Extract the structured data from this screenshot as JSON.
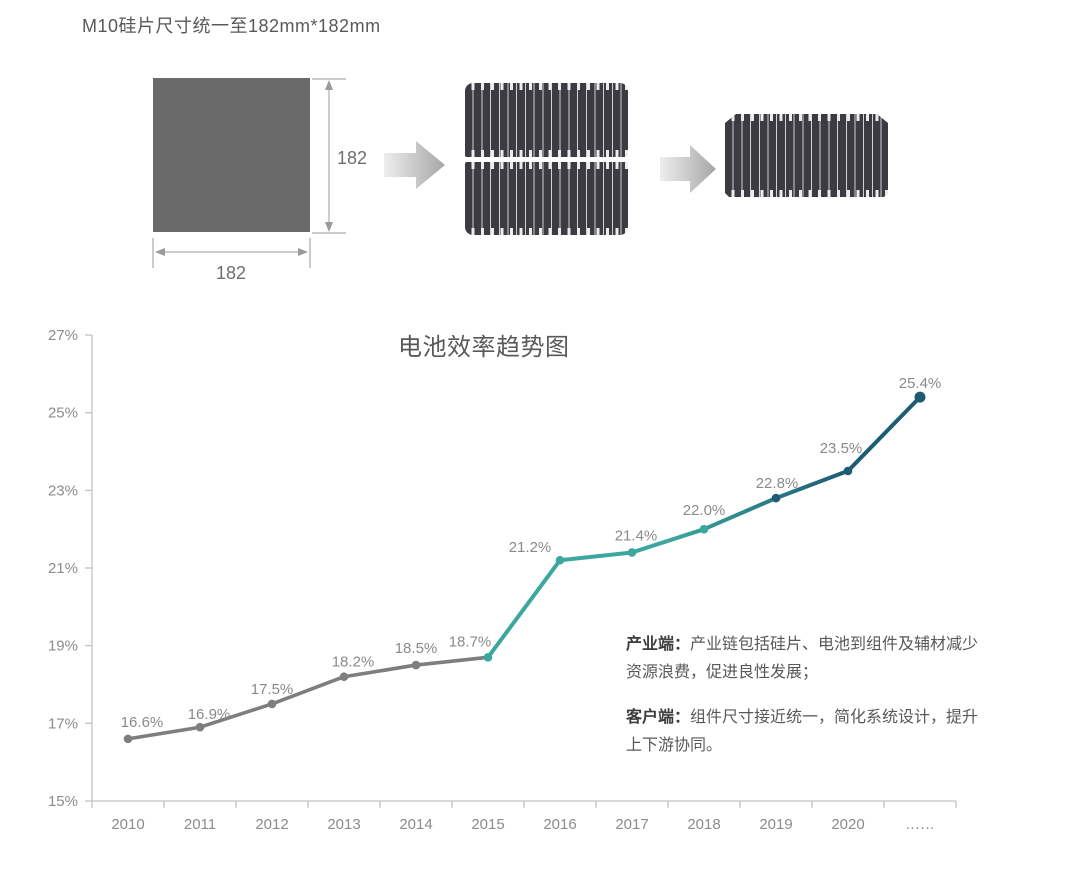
{
  "header": {
    "title": "M10硅片尺寸统一至182mm*182mm"
  },
  "diagram": {
    "wafer_height_label": "182",
    "wafer_width_label": "182"
  },
  "chart_data": {
    "type": "line",
    "title": "电池效率趋势图",
    "categories": [
      "2010",
      "2011",
      "2012",
      "2013",
      "2014",
      "2015",
      "2016",
      "2017",
      "2018",
      "2019",
      "2020",
      "……"
    ],
    "values": [
      16.6,
      16.9,
      17.5,
      18.2,
      18.5,
      18.7,
      21.2,
      21.4,
      22.0,
      22.8,
      23.5,
      25.4
    ],
    "point_labels": [
      "16.6%",
      "16.9%",
      "17.5%",
      "18.2%",
      "18.5%",
      "18.7%",
      "21.2%",
      "21.4%",
      "22.0%",
      "22.8%",
      "23.5%",
      "25.4%"
    ],
    "xlabel": "",
    "ylabel": "",
    "ylim": [
      15,
      27
    ],
    "ytick_step": 2,
    "ytick_labels": [
      "15%",
      "17%",
      "19%",
      "21%",
      "23%",
      "25%",
      "27%"
    ],
    "grid": false,
    "legend": "none",
    "series_colors": {
      "early": "#7e7e7e",
      "mid": "#3ca79e",
      "late": "#1e5c74"
    },
    "first_teal_index": 5,
    "first_dark_index": 9,
    "axis_color": "#c2c2c2",
    "label_color": "#8c8c8c"
  },
  "notes": [
    {
      "head": "产业端：",
      "body": "产业链包括硅片、电池到组件及辅材减少资源浪费，促进良性发展；"
    },
    {
      "head": "客户端：",
      "body": "组件尺寸接近统一，简化系统设计，提升上下游协同。"
    }
  ]
}
